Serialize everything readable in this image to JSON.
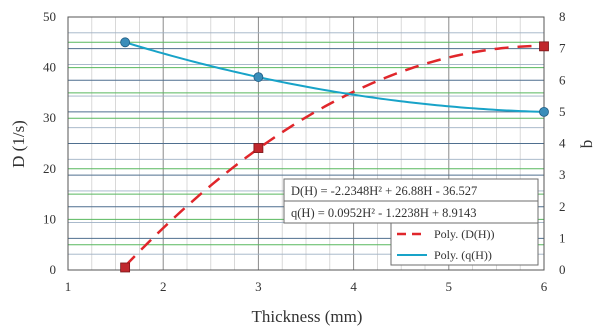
{
  "chart_data": {
    "type": "scatter",
    "x_axis": {
      "label": "Thickness (mm)",
      "min": 1,
      "max": 6,
      "ticks": [
        "1",
        "2",
        "3",
        "4",
        "5",
        "6"
      ]
    },
    "y_left": {
      "label": "D (1/s)",
      "min": 0,
      "max": 50,
      "ticks": [
        "0",
        "10",
        "20",
        "30",
        "40",
        "50"
      ]
    },
    "y_right": {
      "label": "q",
      "min": 0,
      "max": 8,
      "ticks": [
        "0",
        "1",
        "2",
        "3",
        "4",
        "5",
        "6",
        "7",
        "8"
      ]
    },
    "grid": true,
    "series": [
      {
        "axis": "left",
        "marker": "square",
        "color": "#c0272d",
        "points": [
          {
            "x": 1.6,
            "y": 0.5
          },
          {
            "x": 3.0,
            "y": 24.1
          },
          {
            "x": 6.0,
            "y": 44.2
          }
        ],
        "trend": {
          "type": "poly",
          "a": -2.2348,
          "b": 26.88,
          "c": -36.527,
          "from": 1.6,
          "to": 6.0
        },
        "trend_color": "#e0262b",
        "legend_label": "Poly. (D(H))"
      },
      {
        "axis": "right",
        "marker": "circle",
        "color": "#3a8dba",
        "points": [
          {
            "x": 1.6,
            "y": 7.2
          },
          {
            "x": 3.0,
            "y": 6.1
          },
          {
            "x": 6.0,
            "y": 5.0
          }
        ],
        "trend": {
          "type": "poly",
          "a": 0.0952,
          "b": -1.2238,
          "c": 8.9143,
          "from": 1.6,
          "to": 6.0
        },
        "trend_color": "#18a3c8",
        "legend_label": "Poly. (q(H))"
      }
    ],
    "equations": [
      "D(H) = -2.2348H² + 26.88H - 36.527",
      "q(H) = 0.0952H² - 1.2238H + 8.9143"
    ],
    "legend_placement": "bottom-right"
  }
}
